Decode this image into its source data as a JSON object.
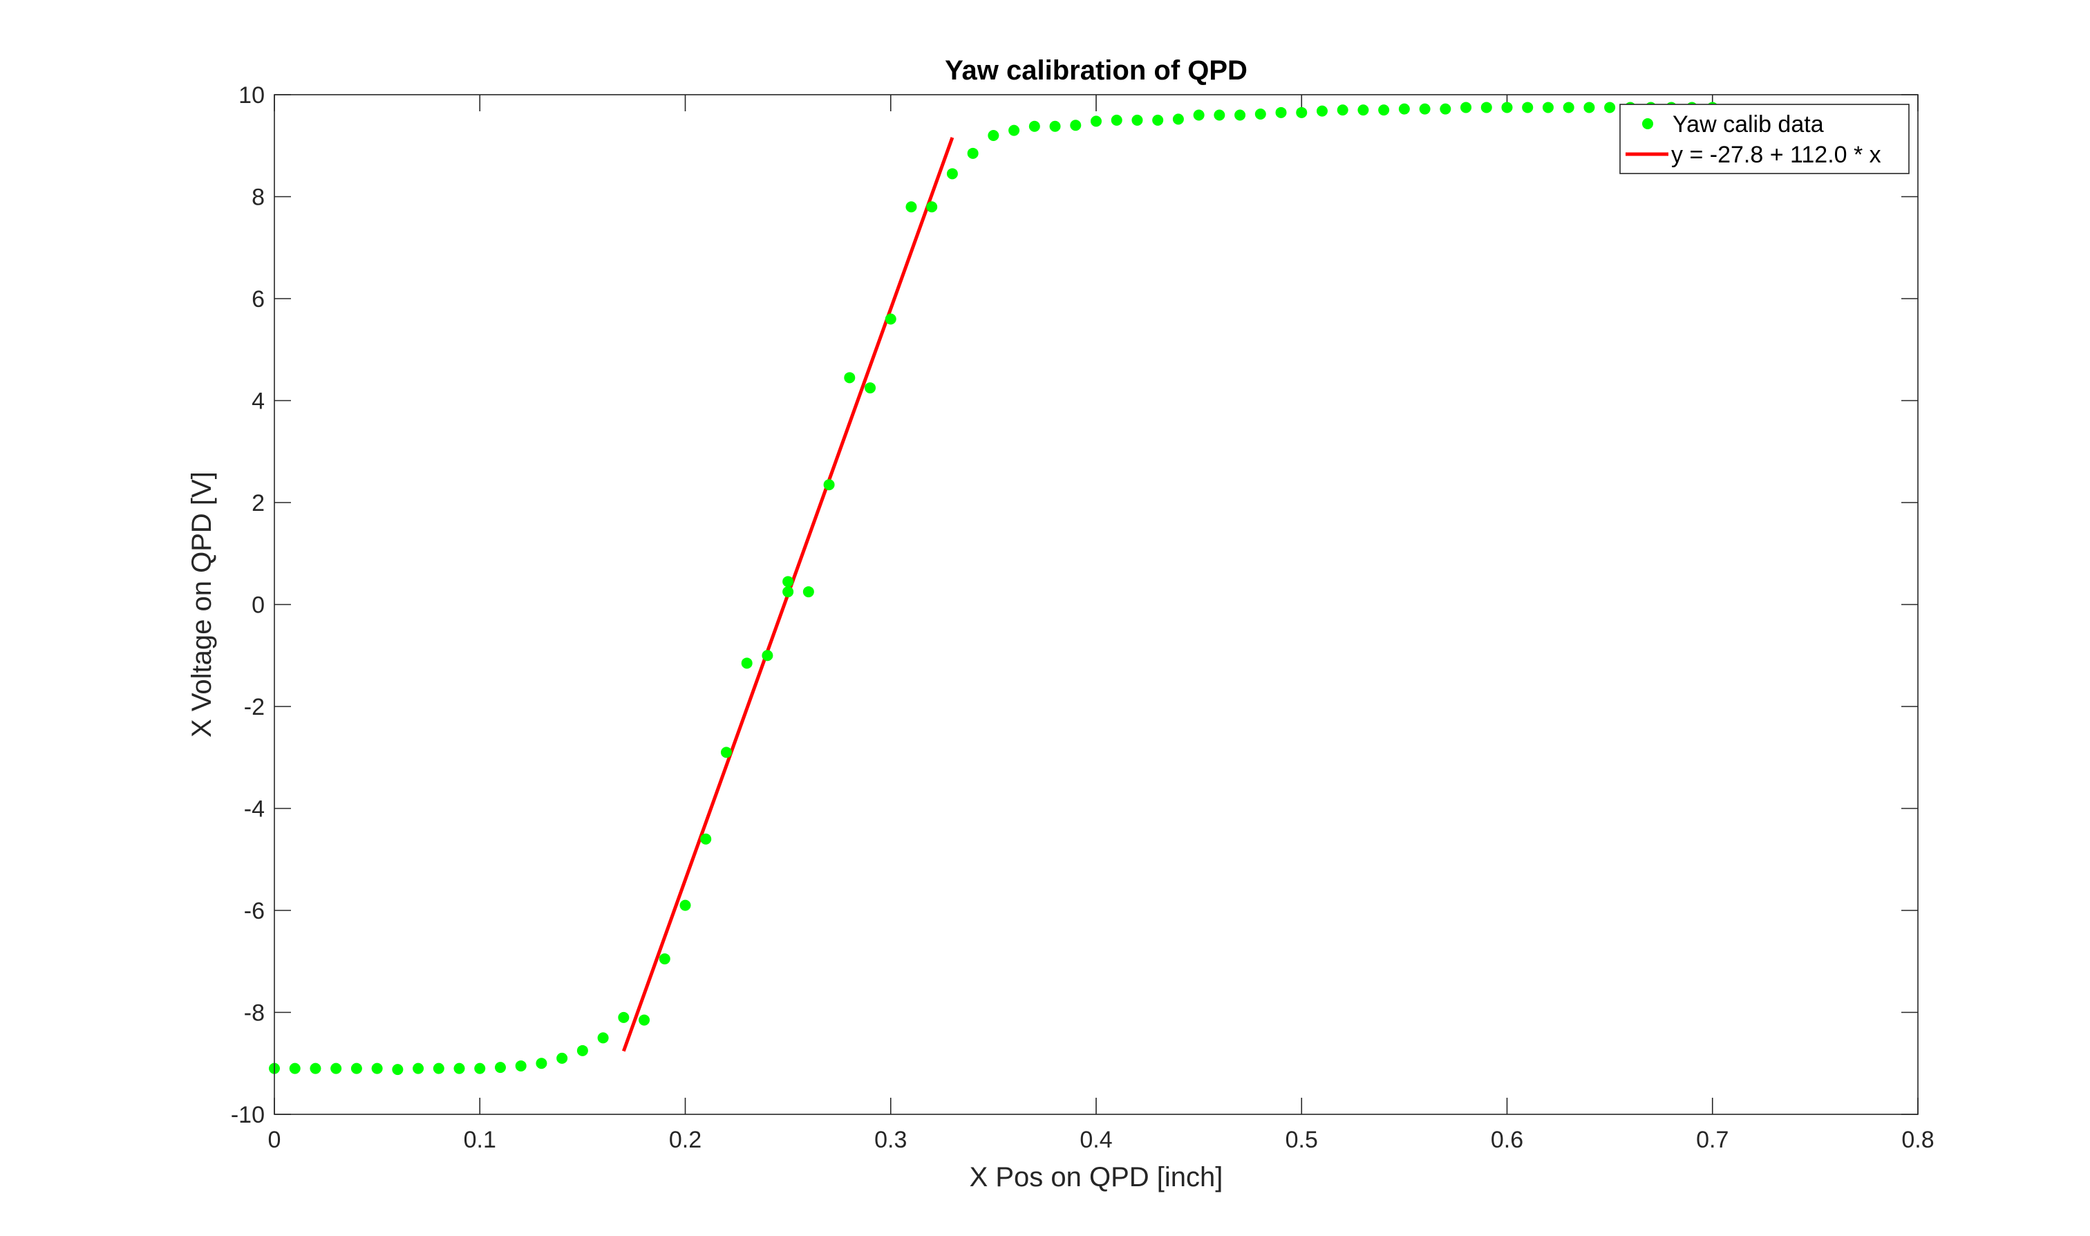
{
  "chart_data": {
    "type": "scatter",
    "title": "Yaw calibration of QPD",
    "xlabel": "X Pos on QPD [inch]",
    "ylabel": "X Voltage on QPD [V]",
    "xlim": [
      0,
      0.8
    ],
    "ylim": [
      -10,
      10
    ],
    "xticks": [
      0,
      0.1,
      0.2,
      0.3,
      0.4,
      0.5,
      0.6,
      0.7,
      0.8
    ],
    "xtick_labels": [
      "0",
      "0.1",
      "0.2",
      "0.3",
      "0.4",
      "0.5",
      "0.6",
      "0.7",
      "0.8"
    ],
    "yticks": [
      -10,
      -8,
      -6,
      -4,
      -2,
      0,
      2,
      4,
      6,
      8,
      10
    ],
    "ytick_labels": [
      "-10",
      "-8",
      "-6",
      "-4",
      "-2",
      "0",
      "2",
      "4",
      "6",
      "8",
      "10"
    ],
    "grid": false,
    "legend_position": "top-right",
    "series": [
      {
        "name": "Yaw calib data",
        "kind": "scatter",
        "color": "#00ff00",
        "x": [
          0,
          0.01,
          0.02,
          0.03,
          0.04,
          0.05,
          0.06,
          0.07,
          0.08,
          0.09,
          0.1,
          0.11,
          0.12,
          0.13,
          0.14,
          0.15,
          0.16,
          0.17,
          0.18,
          0.19,
          0.2,
          0.21,
          0.22,
          0.23,
          0.24,
          0.25,
          0.25,
          0.26,
          0.27,
          0.28,
          0.29,
          0.3,
          0.31,
          0.32,
          0.33,
          0.34,
          0.35,
          0.36,
          0.37,
          0.38,
          0.39,
          0.4,
          0.41,
          0.42,
          0.43,
          0.44,
          0.45,
          0.46,
          0.47,
          0.48,
          0.49,
          0.5,
          0.51,
          0.52,
          0.53,
          0.54,
          0.55,
          0.56,
          0.57,
          0.58,
          0.59,
          0.6,
          0.61,
          0.62,
          0.63,
          0.64,
          0.65,
          0.66,
          0.67,
          0.68,
          0.69,
          0.7
        ],
        "y": [
          -9.1,
          -9.1,
          -9.1,
          -9.1,
          -9.1,
          -9.1,
          -9.12,
          -9.1,
          -9.1,
          -9.1,
          -9.1,
          -9.08,
          -9.05,
          -9.0,
          -8.9,
          -8.75,
          -8.5,
          -8.1,
          -8.15,
          -6.95,
          -5.9,
          -4.6,
          -2.9,
          -1.15,
          -1.0,
          0.45,
          0.25,
          0.25,
          2.35,
          4.45,
          4.25,
          5.6,
          7.8,
          7.8,
          8.45,
          8.85,
          9.2,
          9.3,
          9.38,
          9.38,
          9.4,
          9.48,
          9.5,
          9.5,
          9.5,
          9.52,
          9.6,
          9.6,
          9.6,
          9.62,
          9.65,
          9.65,
          9.68,
          9.7,
          9.7,
          9.7,
          9.72,
          9.72,
          9.72,
          9.75,
          9.75,
          9.75,
          9.75,
          9.75,
          9.75,
          9.75,
          9.75,
          9.75,
          9.75,
          9.75,
          9.75,
          9.75
        ]
      },
      {
        "name": "y = -27.8 + 112.0 * x",
        "kind": "line",
        "color": "#ff0000",
        "x": [
          0.17,
          0.33
        ],
        "y": [
          -8.76,
          9.16
        ]
      }
    ]
  }
}
